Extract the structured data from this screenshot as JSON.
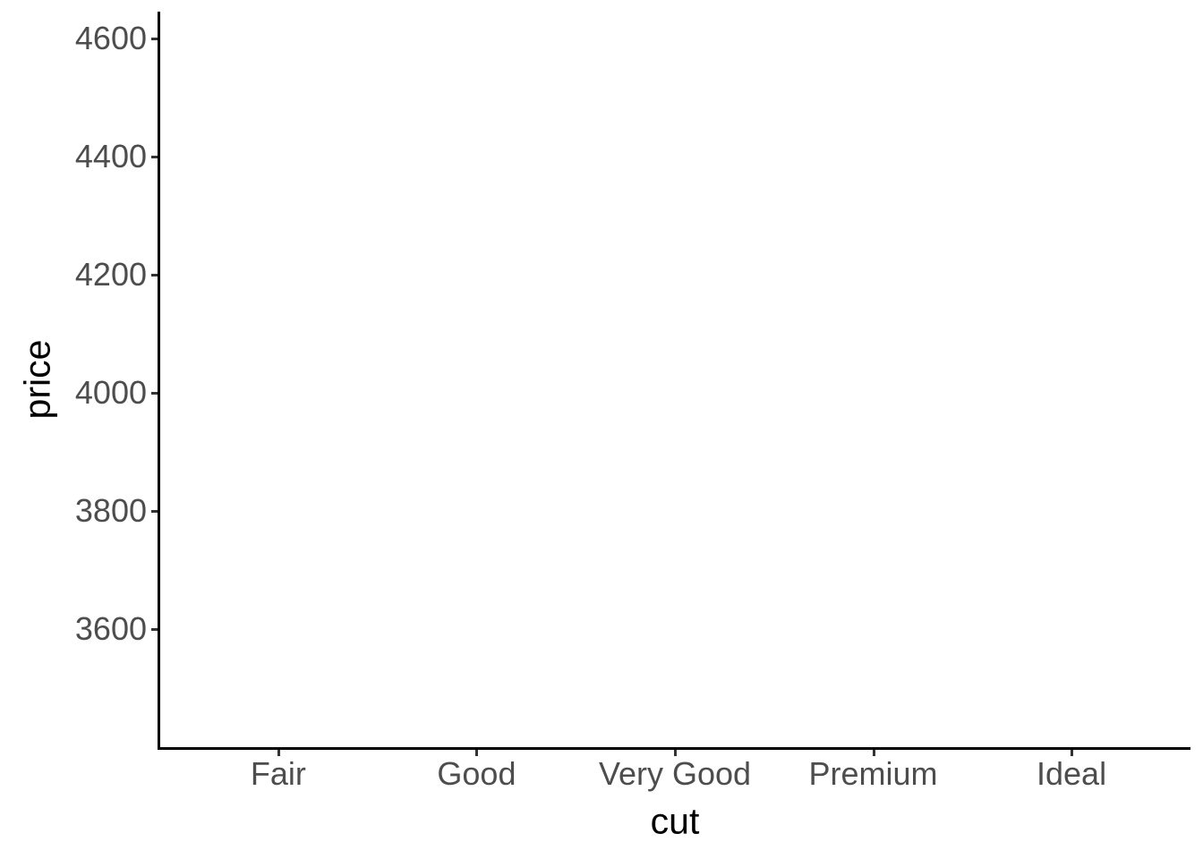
{
  "chart_data": {
    "type": "scatter",
    "title": "",
    "xlabel": "cut",
    "ylabel": "price",
    "categories": [
      "Fair",
      "Good",
      "Very Good",
      "Premium",
      "Ideal"
    ],
    "y_tick_labels": [
      "4600",
      "4400",
      "4200",
      "4000",
      "3800",
      "3600"
    ],
    "y_tick_values": [
      4600,
      4400,
      4200,
      4000,
      3800,
      3600
    ],
    "ylim": [
      3400,
      4645
    ],
    "series": [],
    "grid": false,
    "legend_position": "none",
    "panel_empty": true
  },
  "colors": {
    "background": "#ffffff",
    "axis_line": "#000000",
    "tick_mark": "#333333",
    "tick_label": "#4d4d4d",
    "axis_title": "#000000"
  }
}
